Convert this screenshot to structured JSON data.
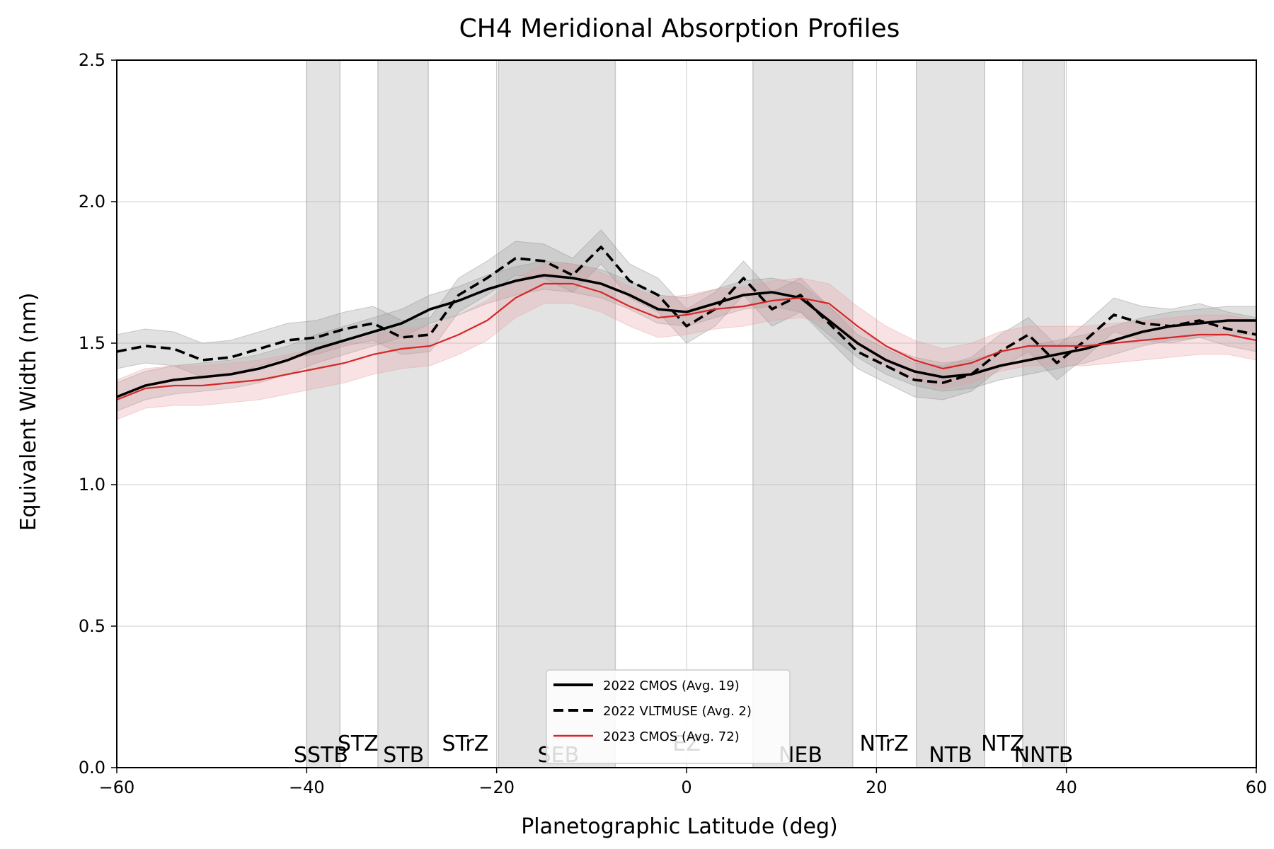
{
  "chart_data": {
    "type": "line",
    "title": "CH4 Meridional Absorption Profiles",
    "xlabel": "Planetographic Latitude (deg)",
    "ylabel": "Equivalent Width (nm)",
    "xlim": [
      -60,
      60
    ],
    "ylim": [
      0,
      2.5
    ],
    "xticks": [
      -60,
      -40,
      -20,
      0,
      20,
      40,
      60
    ],
    "xtick_labels": [
      "−60",
      "−40",
      "−20",
      "0",
      "20",
      "40",
      "60"
    ],
    "yticks": [
      0,
      0.5,
      1.0,
      1.5,
      2.0,
      2.5
    ],
    "ytick_labels": [
      "0.0",
      "0.5",
      "1.0",
      "1.5",
      "2.0",
      "2.5"
    ],
    "grid": true,
    "legend_position": "bottom-center",
    "belts": [
      {
        "name": "SSTB",
        "from": -40,
        "to": -36.5,
        "label_x": -38.5,
        "label_y": 0.02
      },
      {
        "name": "STB",
        "from": -32.5,
        "to": -27.2,
        "label_x": -29.8,
        "label_y": 0.02
      },
      {
        "name": "SEB",
        "from": -19.8,
        "to": -7.5,
        "label_x": -13.5,
        "label_y": 0.02
      },
      {
        "name": "NEB",
        "from": 7,
        "to": 17.5,
        "label_x": 12,
        "label_y": 0.02
      },
      {
        "name": "NTB",
        "from": 24.2,
        "to": 31.4,
        "label_x": 27.8,
        "label_y": 0.02
      },
      {
        "name": "NNTB",
        "from": 35.4,
        "to": 39.8,
        "label_x": 37.6,
        "label_y": 0.02
      }
    ],
    "zone_labels": [
      {
        "name": "STZ",
        "x": -34.6,
        "y": 0.06
      },
      {
        "name": "STrZ",
        "x": -23.3,
        "y": 0.06
      },
      {
        "name": "EZ",
        "x": 0,
        "y": 0.06
      },
      {
        "name": "NTrZ",
        "x": 20.8,
        "y": 0.06
      },
      {
        "name": "NTZ",
        "x": 33.3,
        "y": 0.06
      }
    ],
    "x": [
      -60,
      -57,
      -54,
      -51,
      -48,
      -45,
      -42,
      -39,
      -36,
      -33,
      -30,
      -27,
      -24,
      -21,
      -18,
      -15,
      -12,
      -9,
      -6,
      -3,
      0,
      3,
      6,
      9,
      12,
      15,
      18,
      21,
      24,
      27,
      30,
      33,
      36,
      39,
      42,
      45,
      48,
      51,
      54,
      57,
      60
    ],
    "series": [
      {
        "name": "2022 CMOS (Avg. 19)",
        "color": "#000000",
        "style": "solid",
        "values": [
          1.31,
          1.35,
          1.37,
          1.38,
          1.39,
          1.41,
          1.44,
          1.48,
          1.51,
          1.54,
          1.57,
          1.62,
          1.65,
          1.69,
          1.72,
          1.74,
          1.73,
          1.71,
          1.67,
          1.62,
          1.61,
          1.64,
          1.67,
          1.68,
          1.66,
          1.58,
          1.5,
          1.44,
          1.4,
          1.38,
          1.39,
          1.42,
          1.44,
          1.46,
          1.48,
          1.51,
          1.54,
          1.56,
          1.57,
          1.58,
          1.58
        ],
        "band_halfwidth": 0.05
      },
      {
        "name": "2022 VLTMUSE (Avg. 2)",
        "color": "#000000",
        "style": "dashed",
        "values": [
          1.47,
          1.49,
          1.48,
          1.44,
          1.45,
          1.48,
          1.51,
          1.52,
          1.55,
          1.57,
          1.52,
          1.53,
          1.67,
          1.73,
          1.8,
          1.79,
          1.74,
          1.84,
          1.72,
          1.67,
          1.56,
          1.62,
          1.73,
          1.62,
          1.67,
          1.57,
          1.47,
          1.42,
          1.37,
          1.36,
          1.39,
          1.47,
          1.53,
          1.43,
          1.51,
          1.6,
          1.57,
          1.56,
          1.58,
          1.55,
          1.53
        ],
        "band_halfwidth": 0.06
      },
      {
        "name": "2023 CMOS (Avg. 72)",
        "color": "#d62728",
        "style": "solid",
        "values": [
          1.3,
          1.34,
          1.35,
          1.35,
          1.36,
          1.37,
          1.39,
          1.41,
          1.43,
          1.46,
          1.48,
          1.49,
          1.53,
          1.58,
          1.66,
          1.71,
          1.71,
          1.68,
          1.63,
          1.59,
          1.6,
          1.62,
          1.63,
          1.65,
          1.66,
          1.64,
          1.56,
          1.49,
          1.44,
          1.41,
          1.43,
          1.47,
          1.49,
          1.49,
          1.49,
          1.5,
          1.51,
          1.52,
          1.53,
          1.53,
          1.51
        ],
        "band_halfwidth": 0.07
      }
    ]
  }
}
